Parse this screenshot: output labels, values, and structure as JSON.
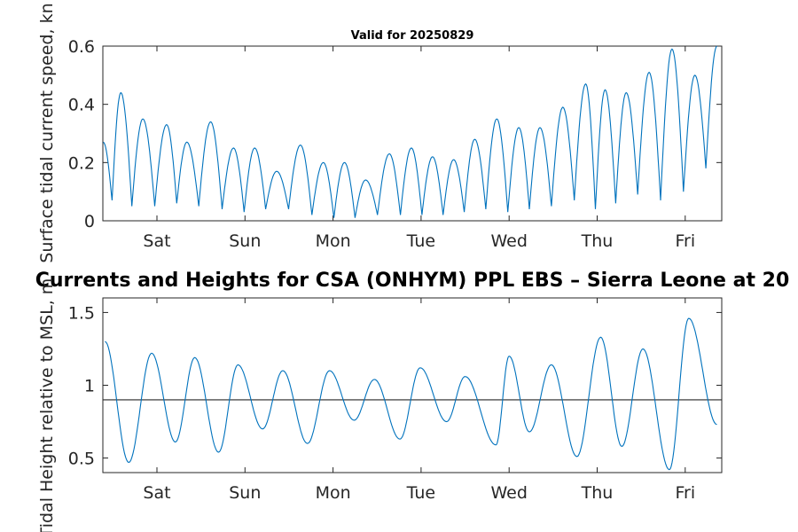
{
  "chart_data": [
    {
      "type": "line",
      "title": "Valid for 20250829",
      "ylabel": "Surface tidal current speed, kn",
      "xlabel": "",
      "ylim": [
        0,
        0.6
      ],
      "yticks": [
        "0",
        "0.2",
        "0.4",
        "0.6"
      ],
      "xticks": [
        "Sat",
        "Sun",
        "Mon",
        "Tue",
        "Wed",
        "Thu",
        "Fri"
      ],
      "xlim_days": [
        0,
        7
      ],
      "grid": false,
      "color": "#0072BD",
      "series": [
        {
          "peak_days": [
            0.0,
            0.2,
            0.45,
            0.72,
            0.95,
            1.22,
            1.48,
            1.72,
            1.97,
            2.24,
            2.5,
            2.74,
            2.98,
            3.25,
            3.5,
            3.74,
            3.98,
            4.22,
            4.47,
            4.72,
            4.96,
            5.22,
            5.48,
            5.7,
            5.94,
            6.2,
            6.46,
            6.72,
            6.97
          ],
          "peak_speed": [
            0.27,
            0.44,
            0.35,
            0.33,
            0.27,
            0.34,
            0.25,
            0.25,
            0.17,
            0.26,
            0.2,
            0.2,
            0.14,
            0.23,
            0.25,
            0.22,
            0.21,
            0.28,
            0.35,
            0.32,
            0.32,
            0.39,
            0.47,
            0.45,
            0.44,
            0.51,
            0.59,
            0.5,
            0.6
          ]
        }
      ]
    },
    {
      "type": "line",
      "title": "Currents and Heights for CSA (ONHYM) PPL EBS  – Sierra Leone at 20",
      "ylabel": "Tidal Height relative to MSL, m",
      "xlabel": "",
      "ylim": [
        0.4,
        1.6
      ],
      "yticks": [
        "0.5",
        "1",
        "1.5"
      ],
      "xticks": [
        "Sat",
        "Sun",
        "Mon",
        "Tue",
        "Wed",
        "Thu",
        "Fri"
      ],
      "xlim_days": [
        0,
        7
      ],
      "grid": false,
      "color": "#0072BD",
      "reference_line": 0.9,
      "series": [
        {
          "extrema_days": [
            0.02,
            0.29,
            0.55,
            0.82,
            1.04,
            1.31,
            1.53,
            1.81,
            2.04,
            2.32,
            2.57,
            2.85,
            3.08,
            3.37,
            3.6,
            3.9,
            4.11,
            4.46,
            4.61,
            4.84,
            5.09,
            5.38,
            5.65,
            5.89,
            6.13,
            6.43,
            6.65,
            6.97
          ],
          "extrema_height": [
            1.3,
            0.47,
            1.22,
            0.61,
            1.19,
            0.54,
            1.14,
            0.7,
            1.1,
            0.6,
            1.1,
            0.76,
            1.04,
            0.63,
            1.12,
            0.75,
            1.06,
            0.59,
            1.2,
            0.68,
            1.14,
            0.51,
            1.33,
            0.58,
            1.25,
            0.42,
            1.46,
            0.73
          ]
        }
      ]
    }
  ]
}
